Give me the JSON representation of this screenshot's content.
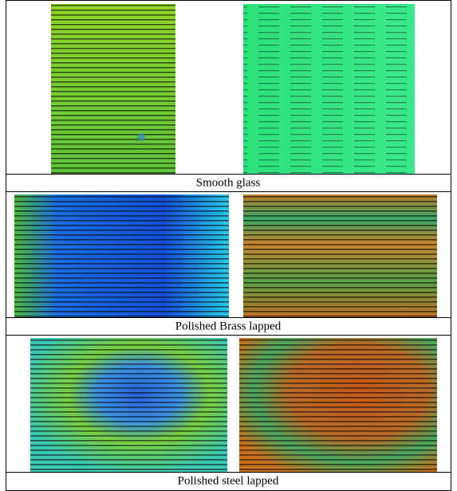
{
  "figure": {
    "rows": [
      {
        "caption": "Smooth glass"
      },
      {
        "caption": "Polished Brass lapped"
      },
      {
        "caption": "Polished steel lapped"
      }
    ]
  }
}
